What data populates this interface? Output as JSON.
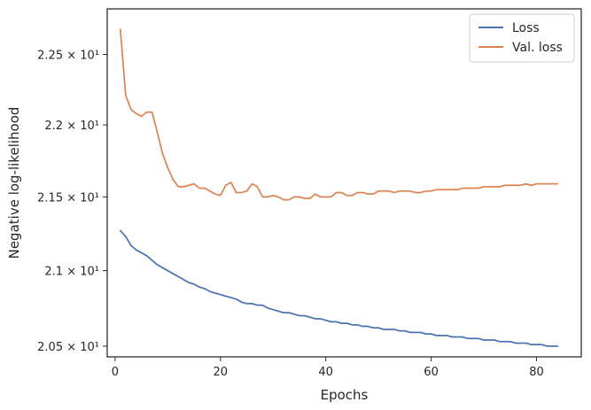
{
  "chart_data": {
    "type": "line",
    "xlabel": "Epochs",
    "ylabel": "Negative log-likelihood",
    "xlim": [
      -1.5,
      88.5
    ],
    "ylim": [
      20.43,
      22.83
    ],
    "y_scale": "log",
    "x_ticks": [
      0,
      20,
      40,
      60,
      80
    ],
    "y_ticks": [
      {
        "value": 20.5,
        "label": "2.05 × 10¹"
      },
      {
        "value": 21.0,
        "label": "2.1 × 10¹"
      },
      {
        "value": 21.5,
        "label": "2.15 × 10¹"
      },
      {
        "value": 22.0,
        "label": "2.2 × 10¹"
      },
      {
        "value": 22.5,
        "label": "2.25 × 10¹"
      }
    ],
    "grid": false,
    "legend_position": "top-right",
    "colors": {
      "Loss": "#4c72b0",
      "Val. loss": "#dd8452",
      "axes": "#262626"
    },
    "x": [
      1,
      2,
      3,
      4,
      5,
      6,
      7,
      8,
      9,
      10,
      11,
      12,
      13,
      14,
      15,
      16,
      17,
      18,
      19,
      20,
      21,
      22,
      23,
      24,
      25,
      26,
      27,
      28,
      29,
      30,
      31,
      32,
      33,
      34,
      35,
      36,
      37,
      38,
      39,
      40,
      41,
      42,
      43,
      44,
      45,
      46,
      47,
      48,
      49,
      50,
      51,
      52,
      53,
      54,
      55,
      56,
      57,
      58,
      59,
      60,
      61,
      62,
      63,
      64,
      65,
      66,
      67,
      68,
      69,
      70,
      71,
      72,
      73,
      74,
      75,
      76,
      77,
      78,
      79,
      80,
      81,
      82,
      83,
      84
    ],
    "series": [
      {
        "name": "Loss",
        "values": [
          21.27,
          21.23,
          21.17,
          21.14,
          21.12,
          21.1,
          21.07,
          21.04,
          21.02,
          21.0,
          20.98,
          20.96,
          20.94,
          20.92,
          20.91,
          20.89,
          20.88,
          20.86,
          20.85,
          20.84,
          20.83,
          20.82,
          20.81,
          20.79,
          20.78,
          20.78,
          20.77,
          20.77,
          20.75,
          20.74,
          20.73,
          20.72,
          20.72,
          20.71,
          20.7,
          20.7,
          20.69,
          20.68,
          20.68,
          20.67,
          20.66,
          20.66,
          20.65,
          20.65,
          20.64,
          20.64,
          20.63,
          20.63,
          20.62,
          20.62,
          20.61,
          20.61,
          20.61,
          20.6,
          20.6,
          20.59,
          20.59,
          20.59,
          20.58,
          20.58,
          20.57,
          20.57,
          20.57,
          20.56,
          20.56,
          20.56,
          20.55,
          20.55,
          20.55,
          20.54,
          20.54,
          20.54,
          20.53,
          20.53,
          20.53,
          20.52,
          20.52,
          20.52,
          20.51,
          20.51,
          20.51,
          20.5,
          20.5,
          20.5
        ]
      },
      {
        "name": "Val. loss",
        "values": [
          22.68,
          22.21,
          22.11,
          22.08,
          22.06,
          22.09,
          22.09,
          21.95,
          21.8,
          21.7,
          21.62,
          21.57,
          21.57,
          21.58,
          21.59,
          21.56,
          21.56,
          21.54,
          21.52,
          21.51,
          21.58,
          21.6,
          21.53,
          21.53,
          21.54,
          21.59,
          21.57,
          21.5,
          21.5,
          21.51,
          21.5,
          21.48,
          21.48,
          21.5,
          21.5,
          21.49,
          21.49,
          21.52,
          21.5,
          21.5,
          21.5,
          21.53,
          21.53,
          21.51,
          21.51,
          21.53,
          21.53,
          21.52,
          21.52,
          21.54,
          21.54,
          21.54,
          21.53,
          21.54,
          21.54,
          21.54,
          21.53,
          21.53,
          21.54,
          21.54,
          21.55,
          21.55,
          21.55,
          21.55,
          21.55,
          21.56,
          21.56,
          21.56,
          21.56,
          21.57,
          21.57,
          21.57,
          21.57,
          21.58,
          21.58,
          21.58,
          21.58,
          21.59,
          21.58,
          21.59,
          21.59,
          21.59,
          21.59,
          21.59
        ]
      }
    ]
  }
}
